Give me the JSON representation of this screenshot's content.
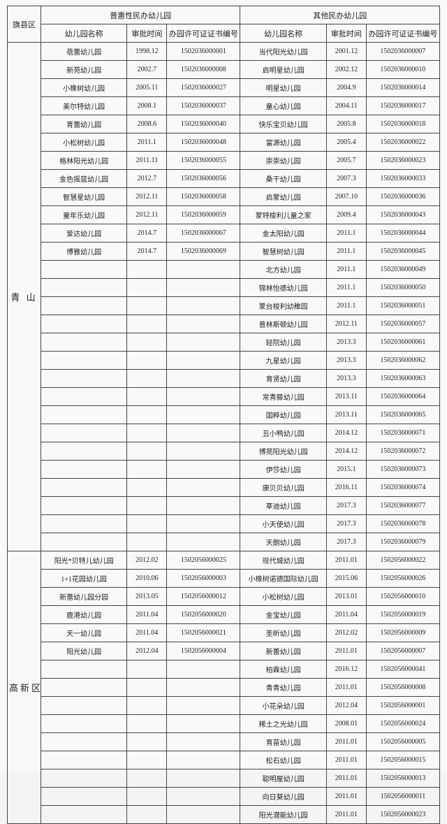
{
  "headers": {
    "region": "旗县区",
    "group_a": "普惠性民办幼儿园",
    "group_b": "其他民办幼儿园",
    "name": "幼儿园名称",
    "date": "审批时间",
    "cert": "办园许可证证书编号"
  },
  "regions": [
    {
      "label": "青 山",
      "rows": [
        {
          "a_name": "蓓蕾幼儿园",
          "a_date": "1998.12",
          "a_cert": "1502036000001",
          "b_name": "当代阳光幼儿园",
          "b_date": "2001.12",
          "b_cert": "1502036000007"
        },
        {
          "a_name": "新苑幼儿园",
          "a_date": "2002.7",
          "a_cert": "1502036000008",
          "b_name": "启明星幼儿园",
          "b_date": "2002.12",
          "b_cert": "1502036000010"
        },
        {
          "a_name": "小橡树幼儿园",
          "a_date": "2005.11",
          "a_cert": "1502036000027",
          "b_name": "明星幼儿园",
          "b_date": "2004.9",
          "b_cert": "1502036000014"
        },
        {
          "a_name": "美尔特幼儿园",
          "a_date": "2008.1",
          "a_cert": "1502036000037",
          "b_name": "童心幼儿园",
          "b_date": "2004.11",
          "b_cert": "1502036000017"
        },
        {
          "a_name": "育蕾幼儿园",
          "a_date": "2008.6",
          "a_cert": "1502036000040",
          "b_name": "快乐宝贝幼儿园",
          "b_date": "2005.8",
          "b_cert": "1502036000018"
        },
        {
          "a_name": "小松树幼儿园",
          "a_date": "2011.1",
          "a_cert": "1502036000048",
          "b_name": "富源幼儿园",
          "b_date": "2005.4",
          "b_cert": "1502036000022"
        },
        {
          "a_name": "格林阳光幼儿园",
          "a_date": "2011.11",
          "a_cert": "1502036000055",
          "b_name": "崇崇幼儿园",
          "b_date": "2005.7",
          "b_cert": "1502036000023"
        },
        {
          "a_name": "金色摇篮幼儿园",
          "a_date": "2012.7",
          "a_cert": "1502036000056",
          "b_name": "桑干幼儿园",
          "b_date": "2007.3",
          "b_cert": "1502036000033"
        },
        {
          "a_name": "智慧星幼儿园",
          "a_date": "2012.11",
          "a_cert": "1502036000058",
          "b_name": "启蒙幼儿园",
          "b_date": "2007.10",
          "b_cert": "1502036000036"
        },
        {
          "a_name": "童年乐幼儿园",
          "a_date": "2012.11",
          "a_cert": "1502036000059",
          "b_name": "蒙特梭利儿童之家",
          "b_date": "2009.4",
          "b_cert": "1502036000043"
        },
        {
          "a_name": "爱达幼儿园",
          "a_date": "2014.7",
          "a_cert": "1502036000067",
          "b_name": "金太阳幼儿园",
          "b_date": "2011.1",
          "b_cert": "1502036000044"
        },
        {
          "a_name": "博雅幼儿园",
          "a_date": "2014.7",
          "a_cert": "1502036000069",
          "b_name": "智慧树幼儿园",
          "b_date": "2011.1",
          "b_cert": "1502036000045"
        },
        {
          "a_name": "",
          "a_date": "",
          "a_cert": "",
          "b_name": "北方幼儿园",
          "b_date": "2011.1",
          "b_cert": "1502036000049"
        },
        {
          "a_name": "",
          "a_date": "",
          "a_cert": "",
          "b_name": "锦林怡德幼儿园",
          "b_date": "2011.1",
          "b_cert": "1502036000050"
        },
        {
          "a_name": "",
          "a_date": "",
          "a_cert": "",
          "b_name": "蒙台梭利幼稚园",
          "b_date": "2011.1",
          "b_cert": "1502036000051"
        },
        {
          "a_name": "",
          "a_date": "",
          "a_cert": "",
          "b_name": "普林斯顿幼儿园",
          "b_date": "2012.11",
          "b_cert": "1502036000057"
        },
        {
          "a_name": "",
          "a_date": "",
          "a_cert": "",
          "b_name": "轻院幼儿园",
          "b_date": "2013.3",
          "b_cert": "1502036000061"
        },
        {
          "a_name": "",
          "a_date": "",
          "a_cert": "",
          "b_name": "九星幼儿园",
          "b_date": "2013.3",
          "b_cert": "1502036000062"
        },
        {
          "a_name": "",
          "a_date": "",
          "a_cert": "",
          "b_name": "育贤幼儿园",
          "b_date": "2013.3",
          "b_cert": "1502036000063"
        },
        {
          "a_name": "",
          "a_date": "",
          "a_cert": "",
          "b_name": "常青藤幼儿园",
          "b_date": "2013.11",
          "b_cert": "1502036000064"
        },
        {
          "a_name": "",
          "a_date": "",
          "a_cert": "",
          "b_name": "国粹幼儿园",
          "b_date": "2013.11",
          "b_cert": "1502036000065"
        },
        {
          "a_name": "",
          "a_date": "",
          "a_cert": "",
          "b_name": "丑小鸭幼儿园",
          "b_date": "2014.12",
          "b_cert": "1502036000071"
        },
        {
          "a_name": "",
          "a_date": "",
          "a_cert": "",
          "b_name": "博苑阳光幼儿园",
          "b_date": "2014.12",
          "b_cert": "1502036000072"
        },
        {
          "a_name": "",
          "a_date": "",
          "a_cert": "",
          "b_name": "伊莎幼儿园",
          "b_date": "2015.1",
          "b_cert": "1502036000073"
        },
        {
          "a_name": "",
          "a_date": "",
          "a_cert": "",
          "b_name": "康贝贝幼儿园",
          "b_date": "2016.11",
          "b_cert": "1502036000074"
        },
        {
          "a_name": "",
          "a_date": "",
          "a_cert": "",
          "b_name": "莘迪幼儿园",
          "b_date": "2017.3",
          "b_cert": "1502036000077"
        },
        {
          "a_name": "",
          "a_date": "",
          "a_cert": "",
          "b_name": "小天使幼儿园",
          "b_date": "2017.3",
          "b_cert": "1502036000078"
        },
        {
          "a_name": "",
          "a_date": "",
          "a_cert": "",
          "b_name": "天朗幼儿园",
          "b_date": "2017.3",
          "b_cert": "1502036000079"
        }
      ]
    },
    {
      "label": "高新区",
      "rows": [
        {
          "a_name": "阳光*贝特儿幼儿园",
          "a_date": "2012.02",
          "a_cert": "1502056000025",
          "b_name": "现代城幼儿园",
          "b_date": "2011.01",
          "b_cert": "1502056000022"
        },
        {
          "a_name": "1+1花园幼儿园",
          "a_date": "2010.06",
          "a_cert": "1502056000003",
          "b_name": "小橡树诺德国际幼儿园",
          "b_date": "2015.06",
          "b_cert": "1502056000026"
        },
        {
          "a_name": "新蕾幼儿园分园",
          "a_date": "2013.05",
          "a_cert": "1502056000012",
          "b_name": "小松树幼儿园",
          "b_date": "2013.01",
          "b_cert": "1502056000010"
        },
        {
          "a_name": "鹿港幼儿园",
          "a_date": "2011.04",
          "a_cert": "1502056000020",
          "b_name": "金宝幼儿园",
          "b_date": "2011.04",
          "b_cert": "1502056000019"
        },
        {
          "a_name": "天一幼儿园",
          "a_date": "2011.04",
          "a_cert": "1502056000021",
          "b_name": "圣昕幼儿园",
          "b_date": "2012.02",
          "b_cert": "1502056000009"
        },
        {
          "a_name": "阳光幼儿园",
          "a_date": "2012.04",
          "a_cert": "1502056000004",
          "b_name": "新蕾幼儿园",
          "b_date": "2011.01",
          "b_cert": "1502056000007"
        },
        {
          "a_name": "",
          "a_date": "",
          "a_cert": "",
          "b_name": "柏霖幼儿园",
          "b_date": "2016.12",
          "b_cert": "1502056000041"
        },
        {
          "a_name": "",
          "a_date": "",
          "a_cert": "",
          "b_name": "青青幼儿园",
          "b_date": "2011.01",
          "b_cert": "1502056000008"
        },
        {
          "a_name": "",
          "a_date": "",
          "a_cert": "",
          "b_name": "小花朵幼儿园",
          "b_date": "2012.04",
          "b_cert": "1502056000001"
        },
        {
          "a_name": "",
          "a_date": "",
          "a_cert": "",
          "b_name": "稀土之光幼儿园",
          "b_date": "2008.01",
          "b_cert": "1502056000024"
        },
        {
          "a_name": "",
          "a_date": "",
          "a_cert": "",
          "b_name": "育苗幼儿园",
          "b_date": "2011.01",
          "b_cert": "1502056000005"
        },
        {
          "a_name": "",
          "a_date": "",
          "a_cert": "",
          "b_name": "松石幼儿园",
          "b_date": "2011.01",
          "b_cert": "1502056000015"
        },
        {
          "a_name": "",
          "a_date": "",
          "a_cert": "",
          "b_name": "聪明屋幼儿园",
          "b_date": "2011.01",
          "b_cert": "1502056000013"
        },
        {
          "a_name": "",
          "a_date": "",
          "a_cert": "",
          "b_name": "向日葵幼儿园",
          "b_date": "2011.01",
          "b_cert": "1502056000011"
        },
        {
          "a_name": "",
          "a_date": "",
          "a_cert": "",
          "b_name": "阳光潜能幼儿园",
          "b_date": "2011.01",
          "b_cert": "1502056000023"
        }
      ]
    }
  ]
}
